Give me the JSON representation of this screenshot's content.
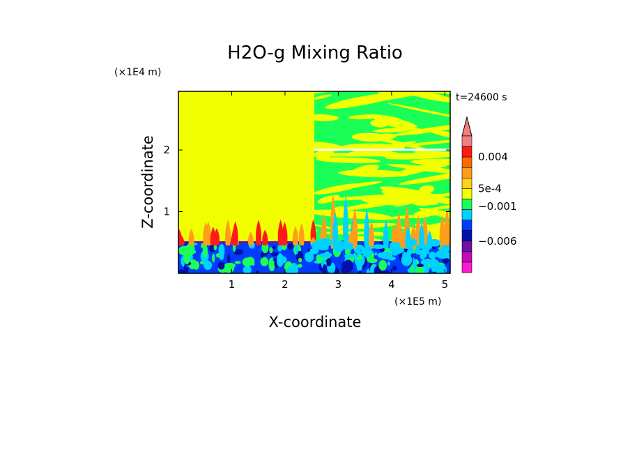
{
  "chart_data": {
    "type": "heatmap",
    "title": "H2O-g Mixing Ratio",
    "xlabel": "X-coordinate",
    "ylabel": "Z-coordinate",
    "x_unit": "(×1E5 m)",
    "y_unit": "(×1E4 m)",
    "time_label": "t=24600 s",
    "xlim": [
      0,
      5.1
    ],
    "ylim": [
      0,
      2.95
    ],
    "x_ticks": [
      {
        "value": 1,
        "label": "1"
      },
      {
        "value": 2,
        "label": "2"
      },
      {
        "value": 3,
        "label": "3"
      },
      {
        "value": 4,
        "label": "4"
      },
      {
        "value": 5,
        "label": "5"
      }
    ],
    "y_ticks": [
      {
        "value": 1,
        "label": "1"
      },
      {
        "value": 2,
        "label": "2"
      }
    ],
    "colorbar": {
      "extend": "max",
      "extend_color": "#f08080",
      "levels_top_to_bottom": [
        "#f08080",
        "#ff1a1a",
        "#ff6a00",
        "#ff9e1a",
        "#ffd21a",
        "#f2ff00",
        "#1aff57",
        "#00d2ff",
        "#003cff",
        "#0010a8",
        "#6e12a6",
        "#c20cb8",
        "#ff1ad2"
      ],
      "labels": [
        {
          "text": "0.004",
          "boundary": 2
        },
        {
          "text": "5e-4",
          "boundary": 5
        },
        {
          "text": "−0.001",
          "boundary": 6.7
        },
        {
          "text": "−0.006",
          "boundary": 10
        }
      ]
    },
    "regions": {
      "left": {
        "x": [
          0,
          2.55
        ],
        "upper_color": "#f2ff00",
        "interface_z": 0.52
      },
      "right": {
        "x": [
          2.55,
          5.1
        ],
        "upper_colors": [
          "#1aff57",
          "#f2ff00",
          "#ffd21a"
        ]
      },
      "boundary_layer_colors": [
        "#003cff",
        "#0010a8",
        "#1aff57",
        "#00d2ff",
        "#ff9e1a",
        "#ff1a1a",
        "#6e12a6"
      ]
    }
  }
}
